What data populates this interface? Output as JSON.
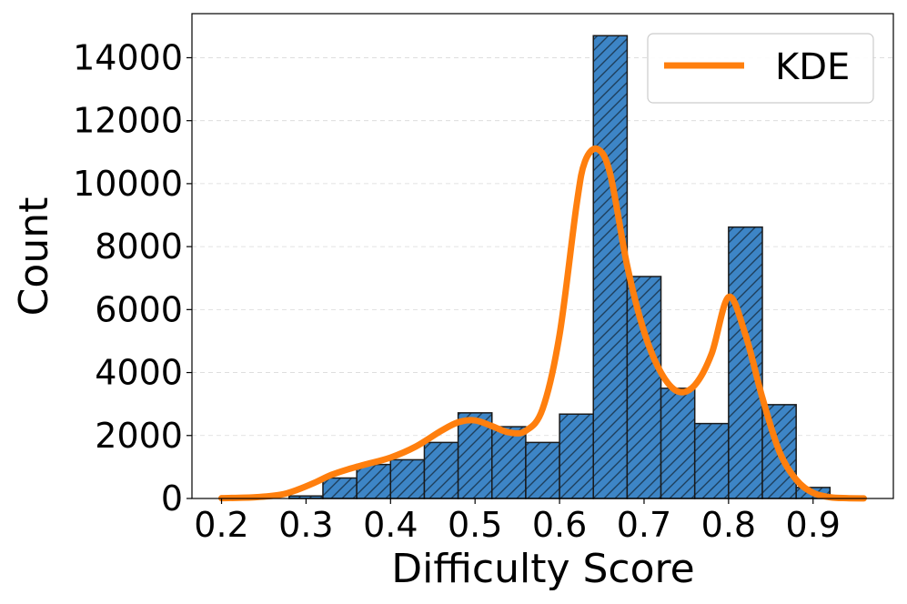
{
  "chart_data": {
    "type": "bar",
    "title": "",
    "xlabel": "Difficulty Score",
    "ylabel": "Count",
    "xlim": [
      0.165,
      0.995
    ],
    "ylim": [
      0,
      15400
    ],
    "xticks": [
      "0.2",
      "0.3",
      "0.4",
      "0.5",
      "0.6",
      "0.7",
      "0.8",
      "0.9"
    ],
    "yticks": [
      "0",
      "2000",
      "4000",
      "6000",
      "8000",
      "10000",
      "12000",
      "14000"
    ],
    "grid": true,
    "legend_position": "top-right",
    "bar_color": "#3d85c6",
    "bar_edge_color": "#1a1a1a",
    "bar_hatch": "//",
    "line_color": "#ff7f0e",
    "bins": [
      {
        "x0": 0.28,
        "x1": 0.32,
        "count": 80
      },
      {
        "x0": 0.32,
        "x1": 0.36,
        "count": 650
      },
      {
        "x0": 0.36,
        "x1": 0.4,
        "count": 1080
      },
      {
        "x0": 0.4,
        "x1": 0.44,
        "count": 1230
      },
      {
        "x0": 0.44,
        "x1": 0.48,
        "count": 1780
      },
      {
        "x0": 0.48,
        "x1": 0.52,
        "count": 2720
      },
      {
        "x0": 0.52,
        "x1": 0.56,
        "count": 2280
      },
      {
        "x0": 0.56,
        "x1": 0.6,
        "count": 1780
      },
      {
        "x0": 0.6,
        "x1": 0.64,
        "count": 2680
      },
      {
        "x0": 0.64,
        "x1": 0.68,
        "count": 14700
      },
      {
        "x0": 0.68,
        "x1": 0.72,
        "count": 7050
      },
      {
        "x0": 0.72,
        "x1": 0.76,
        "count": 3500
      },
      {
        "x0": 0.76,
        "x1": 0.8,
        "count": 2380
      },
      {
        "x0": 0.8,
        "x1": 0.84,
        "count": 8620
      },
      {
        "x0": 0.84,
        "x1": 0.88,
        "count": 2980
      },
      {
        "x0": 0.88,
        "x1": 0.92,
        "count": 350
      }
    ],
    "series": [
      {
        "name": "KDE",
        "x": [
          0.2,
          0.24,
          0.27,
          0.29,
          0.31,
          0.33,
          0.35,
          0.37,
          0.4,
          0.43,
          0.46,
          0.48,
          0.5,
          0.52,
          0.54,
          0.56,
          0.58,
          0.6,
          0.62,
          0.63,
          0.645,
          0.66,
          0.68,
          0.7,
          0.72,
          0.74,
          0.76,
          0.78,
          0.8,
          0.82,
          0.84,
          0.86,
          0.88,
          0.9,
          0.92,
          0.94,
          0.96
        ],
        "y": [
          10,
          40,
          120,
          280,
          500,
          750,
          930,
          1080,
          1300,
          1650,
          2150,
          2420,
          2480,
          2300,
          2100,
          2150,
          2850,
          5200,
          9300,
          10700,
          11100,
          10300,
          7400,
          5300,
          4000,
          3400,
          3600,
          4600,
          6400,
          5200,
          3200,
          1500,
          600,
          180,
          40,
          10,
          5
        ]
      }
    ]
  }
}
